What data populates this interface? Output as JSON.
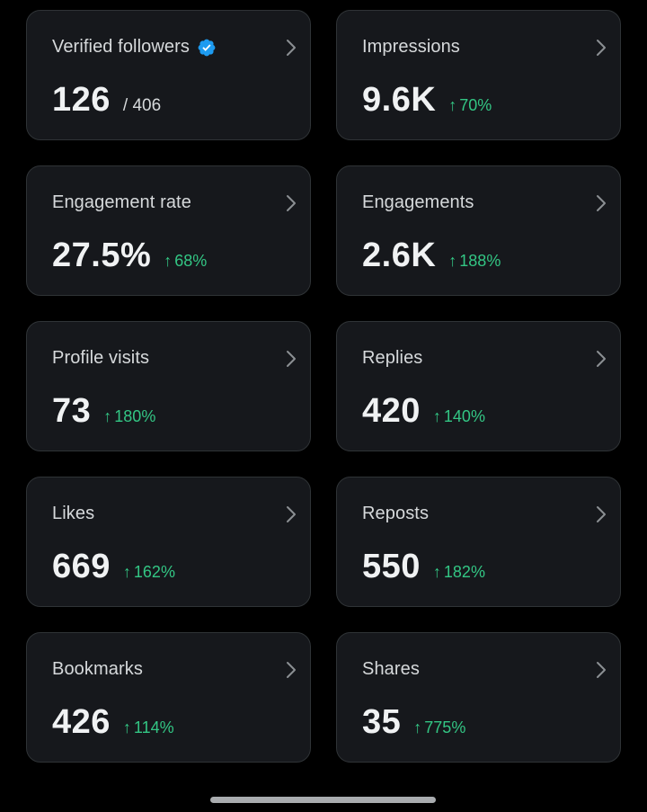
{
  "cards": [
    {
      "label": "Verified followers",
      "value": "126",
      "sub": "/ 406",
      "verified": true
    },
    {
      "label": "Impressions",
      "value": "9.6K",
      "change": "70%"
    },
    {
      "label": "Engagement rate",
      "value": "27.5%",
      "change": "68%"
    },
    {
      "label": "Engagements",
      "value": "2.6K",
      "change": "188%"
    },
    {
      "label": "Profile visits",
      "value": "73",
      "change": "180%"
    },
    {
      "label": "Replies",
      "value": "420",
      "change": "140%"
    },
    {
      "label": "Likes",
      "value": "669",
      "change": "162%"
    },
    {
      "label": "Reposts",
      "value": "550",
      "change": "182%"
    },
    {
      "label": "Bookmarks",
      "value": "426",
      "change": "114%"
    },
    {
      "label": "Shares",
      "value": "35",
      "change": "775%"
    }
  ],
  "icons": {
    "verified": "verified-badge-icon",
    "chevron": "chevron-right-icon",
    "change_arrow": "arrow-up-icon"
  },
  "colors": {
    "background": "#000000",
    "card_background": "#16181c",
    "card_border": "#2f3336",
    "positive_change": "#33c684",
    "verified_badge": "#1d9bf0"
  }
}
